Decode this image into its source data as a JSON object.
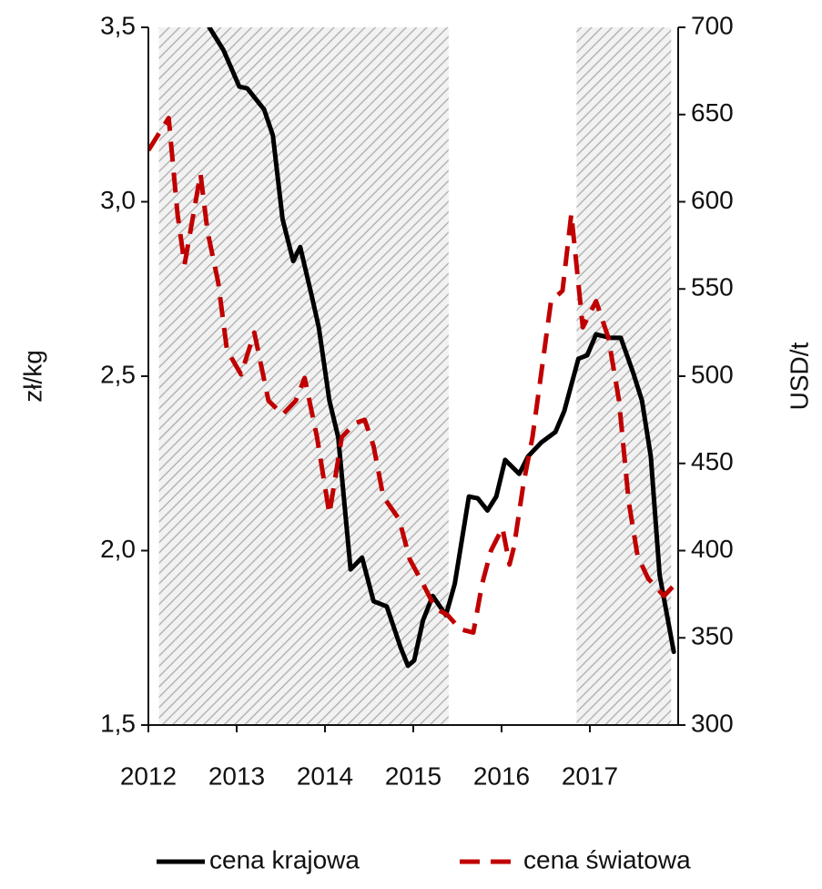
{
  "chart_data": {
    "type": "line",
    "y_label": "zł/kg",
    "y2_label": "USD/t",
    "xlim": [
      2012,
      2018
    ],
    "xticks": [
      2012,
      2013,
      2014,
      2015,
      2016,
      2017
    ],
    "ylim": [
      1.5,
      3.5
    ],
    "yticks": [
      {
        "value": 1.5,
        "label": "1,5"
      },
      {
        "value": 2.0,
        "label": "2,0"
      },
      {
        "value": 2.5,
        "label": "2,5"
      },
      {
        "value": 3.0,
        "label": "3,0"
      },
      {
        "value": 3.5,
        "label": "3,5"
      }
    ],
    "y2lim": [
      300,
      700
    ],
    "y2ticks": [
      300,
      350,
      400,
      450,
      500,
      550,
      600,
      650,
      700
    ],
    "shaded_periods": [
      [
        2012.12,
        2015.4
      ],
      [
        2016.85,
        2017.92
      ]
    ],
    "series": [
      {
        "name": "cena krajowa",
        "color": "#000000",
        "dash": false,
        "x": [
          2012.69,
          2012.85,
          2013.03,
          2013.12,
          2013.31,
          2013.41,
          2013.52,
          2013.64,
          2013.72,
          2013.85,
          2013.93,
          2014.05,
          2014.15,
          2014.29,
          2014.42,
          2014.55,
          2014.7,
          2014.86,
          2014.94,
          2015.01,
          2015.11,
          2015.22,
          2015.37,
          2015.47,
          2015.63,
          2015.73,
          2015.84,
          2015.94,
          2016.04,
          2016.2,
          2016.3,
          2016.45,
          2016.61,
          2016.71,
          2016.87,
          2016.97,
          2017.07,
          2017.23,
          2017.35,
          2017.49,
          2017.59,
          2017.69,
          2017.79,
          2017.95
        ],
        "values": [
          3.5,
          3.435,
          3.33,
          3.325,
          3.265,
          3.19,
          2.95,
          2.83,
          2.87,
          2.73,
          2.64,
          2.43,
          2.325,
          1.946,
          1.98,
          1.855,
          1.84,
          1.72,
          1.67,
          1.685,
          1.8,
          1.87,
          1.815,
          1.905,
          2.155,
          2.15,
          2.115,
          2.155,
          2.26,
          2.22,
          2.27,
          2.31,
          2.34,
          2.4,
          2.55,
          2.56,
          2.62,
          2.61,
          2.61,
          2.51,
          2.43,
          2.27,
          1.93,
          1.71
        ]
      },
      {
        "name": "cena światowa",
        "color": "#c00000",
        "dash": true,
        "axis": "y2",
        "x": [
          2012.0,
          2012.23,
          2012.33,
          2012.41,
          2012.59,
          2012.67,
          2012.79,
          2012.89,
          2013.05,
          2013.2,
          2013.36,
          2013.52,
          2013.67,
          2013.77,
          2013.91,
          2014.05,
          2014.19,
          2014.34,
          2014.45,
          2014.55,
          2014.66,
          2014.84,
          2014.96,
          2015.11,
          2015.25,
          2015.39,
          2015.53,
          2015.68,
          2015.78,
          2015.88,
          2016.01,
          2016.09,
          2016.14,
          2016.25,
          2016.35,
          2016.45,
          2016.56,
          2016.69,
          2016.79,
          2016.92,
          2017.07,
          2017.21,
          2017.33,
          2017.44,
          2017.54,
          2017.66,
          2017.84,
          2017.97
        ],
        "values": [
          629.5,
          648,
          593,
          564,
          616,
          583,
          554,
          515,
          501,
          525,
          486,
          478,
          486,
          499,
          465,
          421,
          465,
          473,
          475,
          460,
          431,
          418,
          395,
          381,
          367,
          363,
          355,
          353,
          381,
          400,
          413,
          392,
          402,
          439,
          465,
          502,
          543,
          549,
          593,
          528,
          543,
          522,
          486,
          428,
          397,
          384,
          374,
          381
        ]
      }
    ]
  }
}
